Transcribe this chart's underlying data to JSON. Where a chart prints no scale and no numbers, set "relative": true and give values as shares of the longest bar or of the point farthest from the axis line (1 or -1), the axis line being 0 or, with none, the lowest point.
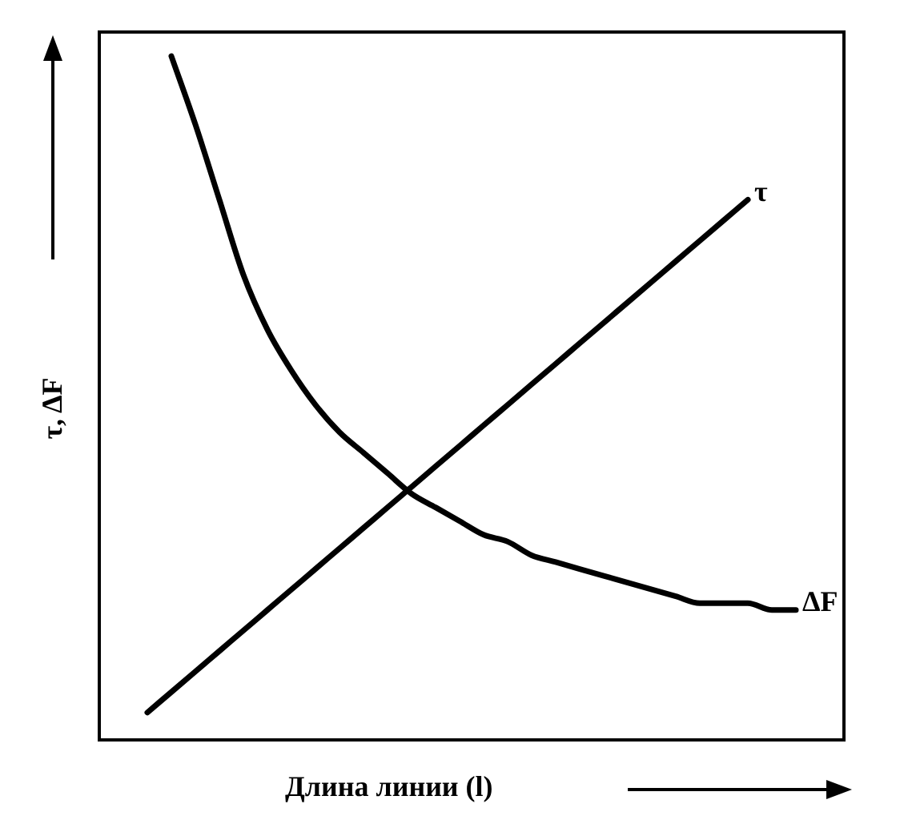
{
  "chart_data": {
    "type": "line",
    "relative": true,
    "marker": "none",
    "xlabel": "Длина линии (l)",
    "ylabel": "τ, ΔF",
    "categories": [
      null,
      null,
      null,
      null,
      null,
      null,
      null,
      null,
      null,
      null,
      null,
      null,
      null,
      null,
      null,
      null,
      null,
      null,
      null,
      null,
      null,
      null,
      null,
      null,
      null,
      null,
      null,
      null,
      null,
      null,
      null,
      null
    ],
    "series": [
      {
        "name": "τ",
        "color": "#000000",
        "values": [
          null,
          null,
          0.04,
          0.07,
          0.1,
          0.13,
          0.16,
          0.19,
          0.22,
          0.25,
          0.28,
          0.31,
          0.34,
          0.37,
          0.4,
          0.43,
          0.46,
          0.49,
          0.52,
          0.55,
          0.58,
          0.61,
          0.64,
          0.67,
          0.7,
          0.73,
          0.76,
          0.79,
          null,
          null,
          null,
          null
        ]
      },
      {
        "name": "ΔF",
        "color": "#000000",
        "values": [
          null,
          null,
          null,
          1.0,
          0.9,
          0.79,
          0.68,
          0.6,
          0.54,
          0.49,
          0.45,
          0.42,
          0.39,
          0.36,
          0.34,
          0.32,
          0.3,
          0.29,
          0.27,
          0.26,
          0.25,
          0.24,
          0.23,
          0.22,
          0.21,
          0.2,
          0.2,
          0.2,
          0.19,
          0.19,
          null,
          null
        ]
      }
    ]
  }
}
